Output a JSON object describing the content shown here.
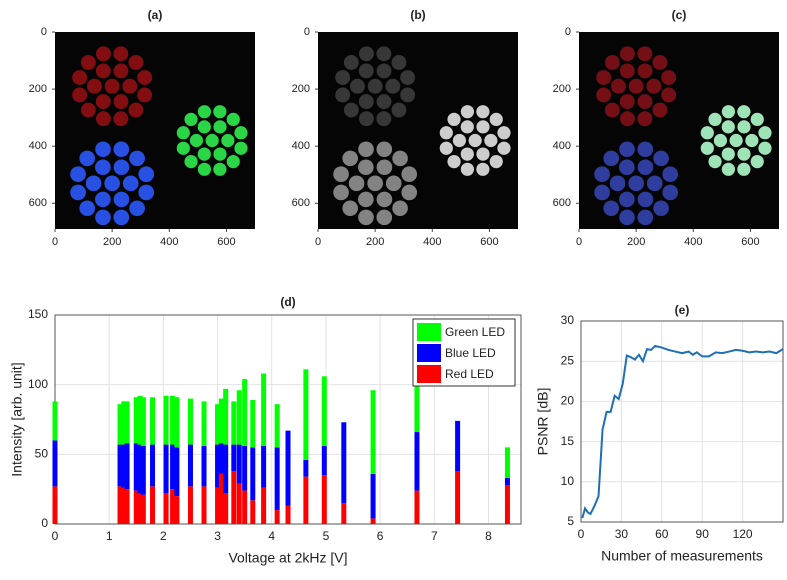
{
  "chart_data": [
    {
      "type": "image",
      "title": "(a)",
      "xlim": [
        0,
        700
      ],
      "ylim": [
        0,
        690
      ],
      "xticks": [
        0,
        200,
        400,
        600
      ],
      "yticks": [
        0,
        200,
        400,
        600
      ]
    },
    {
      "type": "image",
      "title": "(b)",
      "xlim": [
        0,
        700
      ],
      "ylim": [
        0,
        690
      ],
      "xticks": [
        0,
        200,
        400,
        600
      ],
      "yticks": [
        0,
        200,
        400,
        600
      ]
    },
    {
      "type": "image",
      "title": "(c)",
      "xlim": [
        0,
        700
      ],
      "ylim": [
        0,
        690
      ],
      "xticks": [
        0,
        200,
        400,
        600
      ],
      "yticks": [
        0,
        200,
        400,
        600
      ]
    },
    {
      "type": "bar",
      "title": "(d)",
      "xlabel": "Voltage at 2kHz [V]",
      "ylabel": "Intensity [arb. unit]",
      "x": [
        0,
        1.2,
        1.27,
        1.33,
        1.5,
        1.57,
        1.63,
        1.8,
        2.05,
        2.17,
        2.25,
        2.5,
        2.75,
        3.0,
        3.07,
        3.15,
        3.3,
        3.4,
        3.5,
        3.65,
        3.85,
        4.1,
        4.3,
        4.63,
        4.97,
        5.33,
        5.87,
        6.68,
        7.43,
        8.35
      ],
      "series": [
        {
          "name": "Red LED",
          "color": "#ff0000",
          "values": [
            27,
            27,
            26,
            25,
            24,
            22,
            21,
            27,
            22,
            25,
            20,
            27,
            27,
            26,
            36,
            22,
            38,
            29,
            24,
            17,
            26,
            10,
            13,
            34,
            35,
            15,
            4,
            24,
            38,
            28
          ]
        },
        {
          "name": "Blue LED",
          "color": "#0000ff",
          "values": [
            33,
            30,
            31,
            33,
            34,
            35,
            35,
            30,
            35,
            32,
            35,
            30,
            29,
            31,
            22,
            35,
            19,
            28,
            32,
            38,
            30,
            45,
            54,
            12,
            21,
            58,
            32,
            42,
            36,
            5
          ]
        },
        {
          "name": "Green LED",
          "color": "#00ff00",
          "values": [
            28,
            29,
            31,
            30,
            33,
            35,
            35,
            34,
            35,
            35,
            36,
            33,
            32,
            29,
            32,
            40,
            31,
            39,
            48,
            34,
            52,
            31,
            0,
            65,
            50,
            0,
            60,
            46,
            0,
            22
          ]
        }
      ],
      "xlim": [
        0,
        8.6
      ],
      "ylim": [
        0,
        150
      ],
      "xticks": [
        0,
        1,
        2,
        3,
        4,
        5,
        6,
        7,
        8
      ],
      "yticks": [
        0,
        50,
        100,
        150
      ],
      "grid": true,
      "legend": "top-right"
    },
    {
      "type": "line",
      "title": "(e)",
      "xlabel": "Number of measurements",
      "ylabel": "PSNR [dB]",
      "x": [
        1,
        3,
        5,
        7,
        10,
        13,
        16,
        19,
        22,
        25,
        28,
        31,
        34,
        37,
        40,
        43,
        46,
        49,
        52,
        55,
        60,
        65,
        70,
        75,
        80,
        83,
        86,
        90,
        95,
        100,
        105,
        110,
        115,
        120,
        125,
        130,
        135,
        140,
        145,
        150
      ],
      "series": [
        {
          "color": "#1f6fb4",
          "values": [
            5.5,
            6.7,
            6.2,
            6,
            7,
            8.2,
            16.5,
            18.7,
            18.7,
            20.7,
            20.3,
            22.2,
            25.7,
            25.5,
            25.2,
            25.8,
            25,
            26.5,
            26.4,
            26.9,
            26.7,
            26.4,
            26.2,
            26,
            26.2,
            25.8,
            26.1,
            25.6,
            25.6,
            26.1,
            26,
            26.2,
            26.4,
            26.3,
            26.1,
            26.2,
            26.1,
            26.2,
            26,
            26.5
          ]
        }
      ],
      "xlim": [
        0,
        150
      ],
      "ylim": [
        5,
        30
      ],
      "xticks": [
        0,
        30,
        60,
        90,
        120
      ],
      "yticks": [
        5,
        10,
        15,
        20,
        25,
        30
      ],
      "grid": true
    }
  ]
}
